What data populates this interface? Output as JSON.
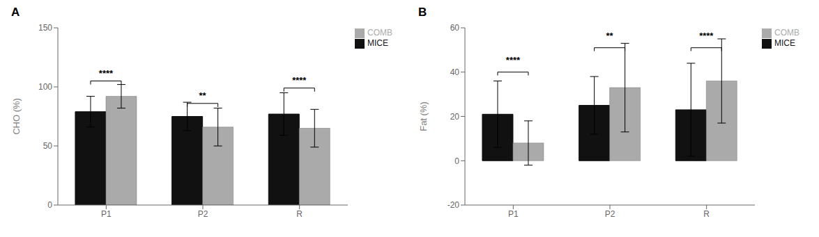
{
  "chart_data": [
    {
      "type": "bar",
      "title": "A",
      "categories": [
        "P1",
        "P2",
        "R"
      ],
      "series": [
        {
          "name": "MICE",
          "color": "#111111",
          "values": [
            79,
            75,
            77
          ],
          "errors": [
            13,
            12,
            18
          ]
        },
        {
          "name": "COMB",
          "color": "#aaaaaa",
          "values": [
            92,
            66,
            65
          ],
          "errors": [
            10,
            16,
            16
          ]
        }
      ],
      "ylabel": "CHO (%)",
      "ylim": [
        0,
        150
      ],
      "yticks": [
        0,
        50,
        100,
        150
      ],
      "annotations": [
        {
          "text": "****",
          "category": "P1",
          "y": 109,
          "bracket_y": 105,
          "bracket_tick": 3
        },
        {
          "text": "**",
          "category": "P2",
          "y": 90,
          "bracket_y": 86,
          "bracket_tick": 3
        },
        {
          "text": "****",
          "category": "R",
          "y": 103,
          "bracket_y": 99,
          "bracket_tick": 3
        }
      ],
      "legend": "upper right",
      "grid": false
    },
    {
      "type": "bar",
      "title": "B",
      "categories": [
        "P1",
        "P2",
        "R"
      ],
      "series": [
        {
          "name": "MICE",
          "color": "#111111",
          "values": [
            21,
            25,
            23
          ],
          "errors": [
            15,
            13,
            21
          ]
        },
        {
          "name": "COMB",
          "color": "#aaaaaa",
          "values": [
            8,
            33,
            36
          ],
          "errors": [
            10,
            20,
            19
          ]
        }
      ],
      "ylabel": "Fat (%)",
      "ylim": [
        -20,
        60
      ],
      "yticks": [
        -20,
        0,
        20,
        40,
        60
      ],
      "annotations": [
        {
          "text": "****",
          "category": "P1",
          "y": 44,
          "bracket_y": 40,
          "bracket_tick": 1.5
        },
        {
          "text": "**",
          "category": "P2",
          "y": 55,
          "bracket_y": 51,
          "bracket_tick": 1.5
        },
        {
          "text": "****",
          "category": "R",
          "y": 55,
          "bracket_y": 51,
          "bracket_tick": 1.5
        }
      ],
      "legend": "upper right",
      "grid": false
    }
  ]
}
